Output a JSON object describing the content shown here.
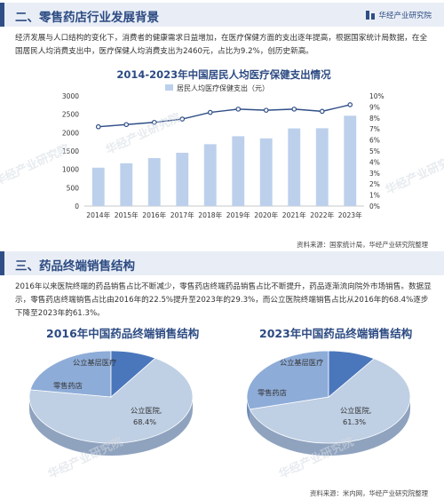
{
  "brand": {
    "name": "华经产业研究院"
  },
  "section1": {
    "title": "二、零售药店行业发展背景",
    "paragraph": "经济发展与人口结构的变化下，消费者的健康需求日益增加，在医疗保健方面的支出逐年提高，根据国家统计局数据，在全国居民人均消费支出中，医疗保健人均消费支出为2460元，占比为9.2%，创历史新高。"
  },
  "chart_data": [
    {
      "type": "bar",
      "title": "2014-2023年中国居民人均医疗保健支出情况",
      "legend": "居民人均医疗保健支出（元）",
      "categories": [
        "2014年",
        "2015年",
        "2016年",
        "2017年",
        "2018年",
        "2019年",
        "2020年",
        "2021年",
        "2022年",
        "2023年"
      ],
      "values": [
        1045,
        1165,
        1307,
        1451,
        1685,
        1902,
        1843,
        2115,
        2120,
        2460
      ],
      "line_values": [
        7.2,
        7.4,
        7.6,
        7.9,
        8.5,
        8.8,
        8.7,
        8.8,
        8.6,
        9.2
      ],
      "ylim_left": [
        0,
        3000
      ],
      "yticks_left": [
        "0",
        "500",
        "1000",
        "1500",
        "2000",
        "2500",
        "3000"
      ],
      "ylim_right": [
        0,
        10
      ],
      "yticks_right": [
        "0%",
        "1%",
        "2%",
        "3%",
        "4%",
        "5%",
        "6%",
        "7%",
        "8%",
        "9%",
        "10%"
      ],
      "bar_color": "#bcd0ec",
      "line_color": "#2f4e86",
      "grid": false,
      "legend_position": "top"
    },
    {
      "type": "pie",
      "title": "2016年中国药品终端销售结构",
      "labels": [
        "公立医院,",
        "零售药店",
        "公立基层医疗"
      ],
      "values": [
        68.4,
        22.5,
        9.1
      ],
      "value_label": "68.4%",
      "colors": [
        "#bfcfe4",
        "#8eacd8",
        "#4a76bb"
      ]
    },
    {
      "type": "pie",
      "title": "2023年中国药品终端销售结构",
      "labels": [
        "公立医院,",
        "零售药店",
        "公立基层医疗"
      ],
      "values": [
        61.3,
        29.3,
        9.4
      ],
      "value_label": "61.3%",
      "colors": [
        "#bfcfe4",
        "#8eacd8",
        "#4a76bb"
      ]
    }
  ],
  "source1": "资料来源：国家统计局，华经产业研究院整理",
  "section3": {
    "title": "三、药品终端销售结构",
    "paragraph": "2016年以来医院终端的药品销售占比不断减少，零售药店终端药品销售占比不断提升，药品逐渐流向院外市场销售。数据显示，零售药店终端销售占比由2016年的22.5%提升至2023年的29.3%，而公立医院终端销售占比从2016年的68.4%逐步下降至2023年的61.3%。"
  },
  "source2": "资料来源：米内网，华经产业研究院整理",
  "watermarks": [
    "华经产业研究院",
    "华经产业研究院",
    "华经产业研究院",
    "华经产业研究院",
    "华经产业研究院"
  ],
  "colors": {
    "accent": "#2f4e86",
    "bar_bg": "#e9eef6"
  }
}
